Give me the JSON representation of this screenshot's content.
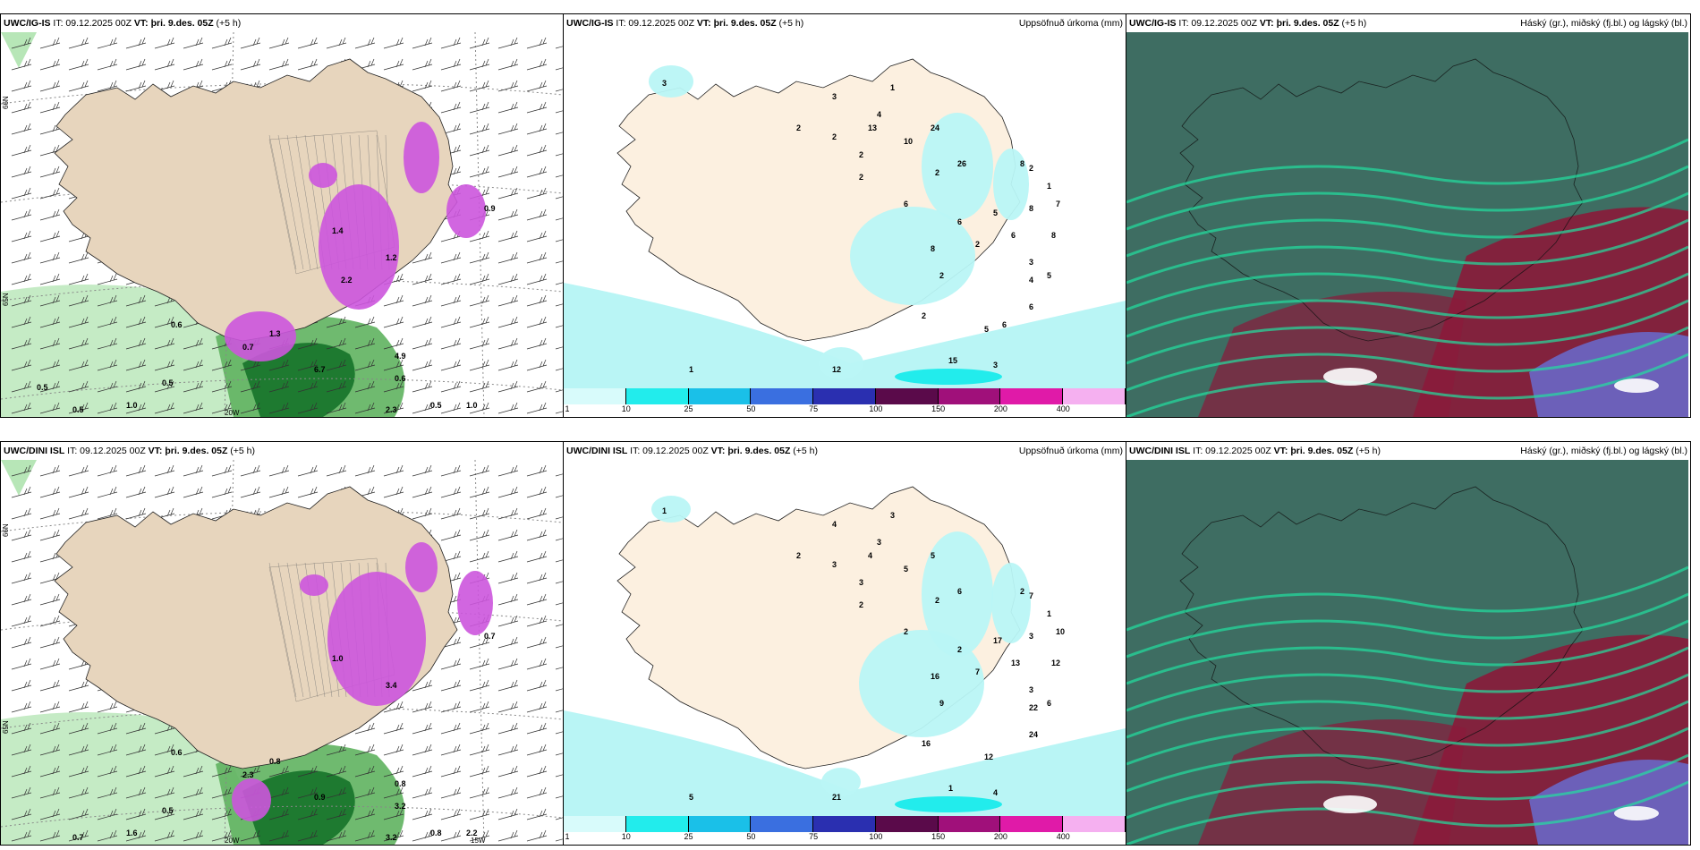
{
  "rows": [
    {
      "model": "UWC/IG-IS",
      "it": "IT: 09.12.2025 00Z",
      "vt_label": "VT:",
      "vt_value": "þri. 9.des. 05Z",
      "offset": "(+5 h)",
      "precip_title": "Uppsöfnuð úrkoma (mm)",
      "cloud_title": "Háský (gr.), miðský (fj.bl.) og lágský (bl.)",
      "wind_values": [
        "0.6",
        "0.5",
        "0.5",
        "1.0",
        "6.7",
        "1.3",
        "0.5",
        "1.0",
        "0.7",
        "0.6",
        "1.2",
        "1.4",
        "0.9",
        "2.3",
        "4.9",
        "2.2",
        "0.5"
      ],
      "precip_values": [
        "3",
        "2",
        "2",
        "4",
        "1",
        "2",
        "2",
        "2",
        "2",
        "1",
        "7",
        "5",
        "6",
        "8",
        "8",
        "2",
        "2",
        "6",
        "4",
        "5",
        "3",
        "3",
        "13",
        "10",
        "24",
        "26",
        "2",
        "3",
        "5",
        "1",
        "6",
        "6",
        "8",
        "8",
        "15",
        "12",
        "6"
      ],
      "axis_labels": [
        "66N",
        "65N",
        "20W"
      ]
    },
    {
      "model": "UWC/DINI ISL",
      "it": "IT: 09.12.2025 00Z",
      "vt_label": "VT:",
      "vt_value": "þri. 9.des. 05Z",
      "offset": "(+5 h)",
      "precip_title": "Uppsöfnuð úrkoma (mm)",
      "cloud_title": "Háský (gr.), miðský (fj.bl.) og lágský (bl.)",
      "wind_values": [
        "0.6",
        "0.5",
        "0.7",
        "1.6",
        "0.9",
        "0.8",
        "0.8",
        "2.2",
        "2.3",
        "3.2",
        "3.4",
        "1.0",
        "0.7",
        "3.2",
        "0.8"
      ],
      "precip_values": [
        "1",
        "2",
        "3",
        "3",
        "3",
        "3",
        "2",
        "2",
        "7",
        "1",
        "10",
        "17",
        "13",
        "12",
        "16",
        "9",
        "16",
        "24",
        "22",
        "12",
        "4",
        "4",
        "4",
        "5",
        "5",
        "6",
        "7",
        "3",
        "6",
        "5",
        "2",
        "2",
        "2",
        "3",
        "1",
        "21"
      ],
      "axis_labels": [
        "66N",
        "65N",
        "20W",
        "15W"
      ]
    }
  ],
  "colorbar": {
    "ticks": [
      "1",
      "10",
      "25",
      "50",
      "75",
      "100",
      "150",
      "200",
      "400"
    ],
    "colors": [
      "#d8fbfb",
      "#22ecec",
      "#1ac0e8",
      "#3a6fe0",
      "#2a2fb0",
      "#5a0a4a",
      "#a0107a",
      "#e01aa8",
      "#f5b0f0"
    ]
  },
  "colors": {
    "land": "#e7d5bd",
    "land_precip": "#fcf0e0",
    "sea_precip_light": "#b9f5f5",
    "cloud_dark": "#3e6d62",
    "cloud_red": "#8a1a3a",
    "cloud_green": "#22e0a0",
    "cloud_blue": "#6670d8",
    "precip_magenta": "#cc55dd",
    "green_light": "#b7e6b7",
    "green_dark": "#1e7a30"
  }
}
